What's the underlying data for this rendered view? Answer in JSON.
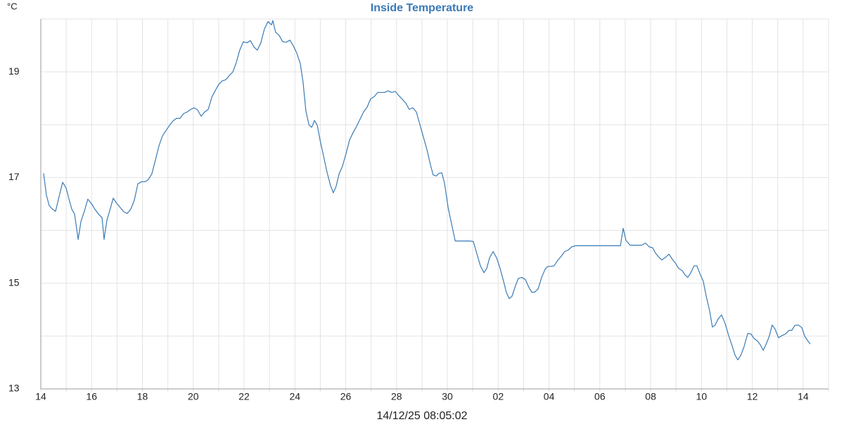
{
  "chart_data": {
    "type": "line",
    "title": "Inside Temperature",
    "y_unit": "°C",
    "xlabel": "14/12/25 08:05:02",
    "color": "#3a7bb5",
    "grid": true,
    "xlim": [
      0,
      31
    ],
    "ylim": [
      13,
      20
    ],
    "xticks": [
      {
        "value": 0,
        "label": "14"
      },
      {
        "value": 2,
        "label": "16"
      },
      {
        "value": 4,
        "label": "18"
      },
      {
        "value": 6,
        "label": "20"
      },
      {
        "value": 8,
        "label": "22"
      },
      {
        "value": 10,
        "label": "24"
      },
      {
        "value": 12,
        "label": "26"
      },
      {
        "value": 14,
        "label": "28"
      },
      {
        "value": 16,
        "label": "30"
      },
      {
        "value": 18,
        "label": "02"
      },
      {
        "value": 20,
        "label": "04"
      },
      {
        "value": 22,
        "label": "06"
      },
      {
        "value": 24,
        "label": "08"
      },
      {
        "value": 26,
        "label": "10"
      },
      {
        "value": 28,
        "label": "12"
      },
      {
        "value": 30,
        "label": "14"
      }
    ],
    "xminor": [
      1,
      3,
      5,
      7,
      9,
      11,
      13,
      15,
      17,
      19,
      21,
      23,
      25,
      27,
      29,
      31
    ],
    "yticks": [
      13,
      15,
      17,
      19
    ],
    "yminor": [
      14,
      16,
      18,
      20
    ],
    "x": [
      0.11,
      0.22,
      0.33,
      0.44,
      0.58,
      0.72,
      0.86,
      1.0,
      1.11,
      1.22,
      1.33,
      1.47,
      1.58,
      1.72,
      1.85,
      1.99,
      2.13,
      2.27,
      2.41,
      2.49,
      2.6,
      2.71,
      2.85,
      2.99,
      3.13,
      3.27,
      3.4,
      3.54,
      3.68,
      3.82,
      3.96,
      4.1,
      4.23,
      4.37,
      4.51,
      4.65,
      4.79,
      4.93,
      5.07,
      5.2,
      5.34,
      5.48,
      5.62,
      5.76,
      5.9,
      6.03,
      6.17,
      6.31,
      6.45,
      6.59,
      6.73,
      6.86,
      7.0,
      7.14,
      7.28,
      7.42,
      7.56,
      7.69,
      7.83,
      7.97,
      8.11,
      8.25,
      8.39,
      8.52,
      8.66,
      8.8,
      8.94,
      9.08,
      9.13,
      9.24,
      9.38,
      9.52,
      9.66,
      9.8,
      9.94,
      10.07,
      10.21,
      10.32,
      10.43,
      10.55,
      10.66,
      10.77,
      10.88,
      10.99,
      11.13,
      11.26,
      11.4,
      11.51,
      11.62,
      11.74,
      11.87,
      12.01,
      12.15,
      12.29,
      12.43,
      12.57,
      12.7,
      12.84,
      12.98,
      13.12,
      13.26,
      13.4,
      13.53,
      13.67,
      13.81,
      13.95,
      14.09,
      14.23,
      14.36,
      14.5,
      14.64,
      14.78,
      14.92,
      15.06,
      15.2,
      15.33,
      15.44,
      15.56,
      15.67,
      15.78,
      15.89,
      16.03,
      16.17,
      16.31,
      16.44,
      16.66,
      16.88,
      17.02,
      17.16,
      17.3,
      17.44,
      17.55,
      17.66,
      17.8,
      17.94,
      18.07,
      18.21,
      18.32,
      18.43,
      18.54,
      18.65,
      18.79,
      18.93,
      19.07,
      19.21,
      19.32,
      19.43,
      19.57,
      19.71,
      19.85,
      19.96,
      20.09,
      20.2,
      20.34,
      20.48,
      20.62,
      20.76,
      20.9,
      21.04,
      21.37,
      21.92,
      22.47,
      22.81,
      22.92,
      23.03,
      23.19,
      23.44,
      23.64,
      23.8,
      23.94,
      24.08,
      24.19,
      24.33,
      24.44,
      24.58,
      24.72,
      24.86,
      24.99,
      25.1,
      25.24,
      25.35,
      25.46,
      25.57,
      25.71,
      25.82,
      25.93,
      26.07,
      26.18,
      26.32,
      26.43,
      26.54,
      26.65,
      26.79,
      26.93,
      27.07,
      27.21,
      27.32,
      27.43,
      27.54,
      27.67,
      27.82,
      27.95,
      28.06,
      28.2,
      28.31,
      28.43,
      28.54,
      28.67,
      28.78,
      28.9,
      29.03,
      29.17,
      29.31,
      29.45,
      29.56,
      29.67,
      29.81,
      29.95,
      30.06,
      30.17,
      30.28
    ],
    "values": [
      17.08,
      16.67,
      16.47,
      16.41,
      16.36,
      16.64,
      16.91,
      16.8,
      16.59,
      16.4,
      16.31,
      15.83,
      16.17,
      16.37,
      16.59,
      16.51,
      16.4,
      16.31,
      16.24,
      15.83,
      16.19,
      16.37,
      16.61,
      16.51,
      16.43,
      16.35,
      16.32,
      16.4,
      16.57,
      16.88,
      16.92,
      16.92,
      16.96,
      17.07,
      17.33,
      17.6,
      17.79,
      17.89,
      17.99,
      18.07,
      18.12,
      18.12,
      18.21,
      18.24,
      18.29,
      18.32,
      18.28,
      18.16,
      18.24,
      18.29,
      18.52,
      18.64,
      18.76,
      18.83,
      18.85,
      18.93,
      19.0,
      19.17,
      19.41,
      19.57,
      19.55,
      19.59,
      19.47,
      19.41,
      19.55,
      19.81,
      19.95,
      19.89,
      19.97,
      19.75,
      19.69,
      19.57,
      19.56,
      19.6,
      19.49,
      19.36,
      19.16,
      18.81,
      18.27,
      18.0,
      17.95,
      18.08,
      17.99,
      17.71,
      17.4,
      17.11,
      16.85,
      16.71,
      16.83,
      17.07,
      17.21,
      17.45,
      17.71,
      17.85,
      17.97,
      18.11,
      18.24,
      18.33,
      18.49,
      18.53,
      18.61,
      18.61,
      18.61,
      18.64,
      18.61,
      18.63,
      18.55,
      18.48,
      18.41,
      18.29,
      18.32,
      18.24,
      18.0,
      17.76,
      17.52,
      17.25,
      17.05,
      17.03,
      17.08,
      17.09,
      16.89,
      16.43,
      16.11,
      15.8,
      15.8,
      15.8,
      15.8,
      15.79,
      15.56,
      15.33,
      15.2,
      15.28,
      15.48,
      15.6,
      15.48,
      15.29,
      15.04,
      14.83,
      14.71,
      14.75,
      14.91,
      15.09,
      15.11,
      15.07,
      14.92,
      14.83,
      14.83,
      14.89,
      15.11,
      15.27,
      15.32,
      15.32,
      15.33,
      15.43,
      15.51,
      15.6,
      15.63,
      15.69,
      15.71,
      15.71,
      15.71,
      15.71,
      15.71,
      16.04,
      15.81,
      15.72,
      15.72,
      15.72,
      15.76,
      15.69,
      15.67,
      15.57,
      15.49,
      15.44,
      15.49,
      15.55,
      15.45,
      15.37,
      15.28,
      15.24,
      15.16,
      15.11,
      15.19,
      15.33,
      15.33,
      15.19,
      15.04,
      14.77,
      14.48,
      14.17,
      14.21,
      14.32,
      14.4,
      14.24,
      14.01,
      13.81,
      13.64,
      13.55,
      13.63,
      13.79,
      14.05,
      14.04,
      13.96,
      13.91,
      13.84,
      13.73,
      13.84,
      14.0,
      14.21,
      14.13,
      13.97,
      14.01,
      14.04,
      14.11,
      14.11,
      14.2,
      14.21,
      14.16,
      14.0,
      13.92,
      13.85
    ]
  }
}
